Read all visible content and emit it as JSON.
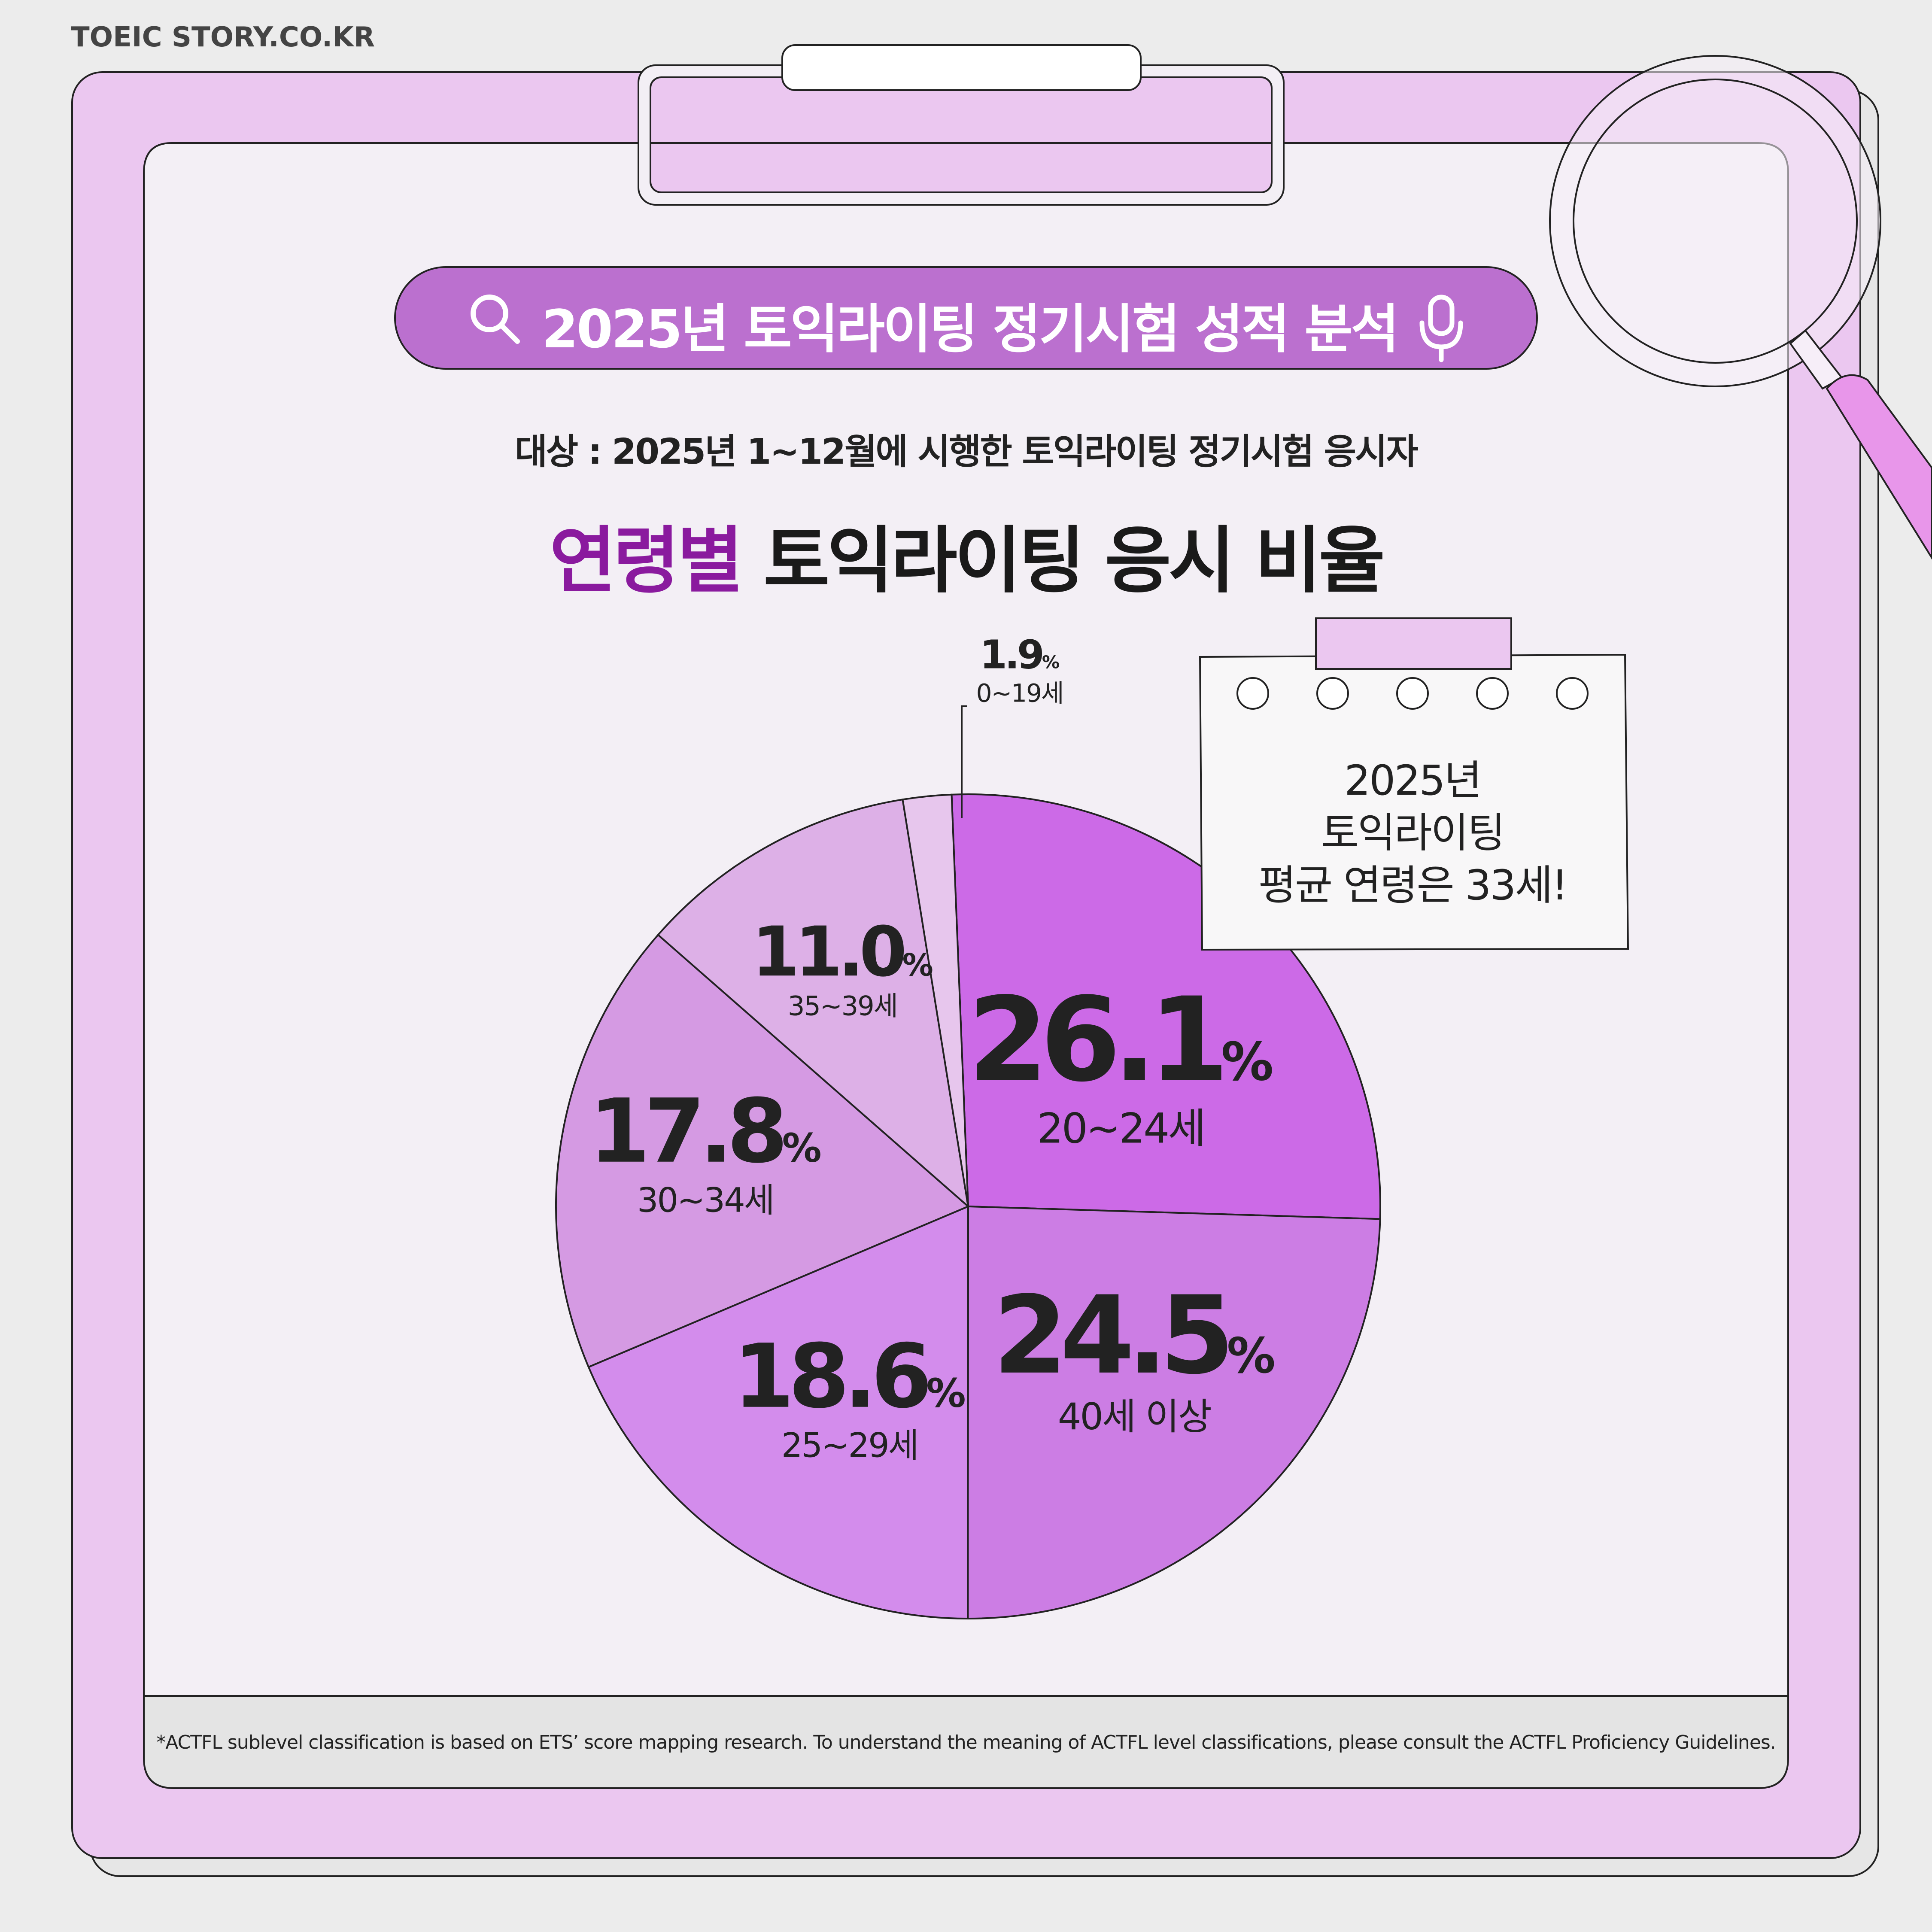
{
  "site": {
    "name": "TOEIC STORY.CO.KR"
  },
  "header": {
    "title": "2025년 토익라이팅 정기시험 성적 분석",
    "search_icon": "search-icon",
    "mic_icon": "microphone-icon"
  },
  "subtitle": "대상 : 2025년 1~12월에 시행한 토익라이팅 정기시험 응시자",
  "heading": {
    "highlight": "연령별",
    "rest": "토익라이팅 응시 비율"
  },
  "note": {
    "line1": "2025년",
    "line2": "토익라이팅",
    "line3": "평균 연령은 33세!"
  },
  "footnote": "*ACTFL sublevel classification is based on ETS’ score mapping research. To understand the meaning of ACTFL level classifications, please consult the ACTFL Proficiency Guidelines.",
  "colors": {
    "background": "#ececec",
    "clipboard": "#ebc7f0",
    "paper": "#f3eff5",
    "pill": "#bb70cf",
    "highlight": "#8a1a9e",
    "magnifier_handle": "#e896ea",
    "footer": "#e4e4e4"
  },
  "chart_data": {
    "type": "pie",
    "title": "연령별 토익라이팅 응시 비율",
    "unit": "%",
    "slices": [
      {
        "label": "20~24세",
        "value": 26.1,
        "value_text": "26.1",
        "color": "#cc6ae7"
      },
      {
        "label": "40세 이상",
        "value": 24.5,
        "value_text": "24.5",
        "color": "#cc7de4"
      },
      {
        "label": "25~29세",
        "value": 18.6,
        "value_text": "18.6",
        "color": "#d38cec"
      },
      {
        "label": "30~34세",
        "value": 17.8,
        "value_text": "17.8",
        "color": "#d59ae3"
      },
      {
        "label": "35~39세",
        "value": 11.0,
        "value_text": "11.0",
        "color": "#ddb0e7"
      },
      {
        "label": "0~19세",
        "value": 1.9,
        "value_text": "1.9",
        "color": "#e7c6ed"
      }
    ]
  }
}
